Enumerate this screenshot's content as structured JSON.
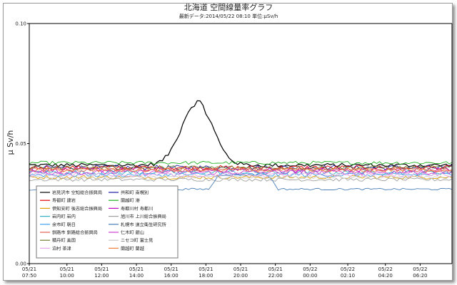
{
  "chart_data": {
    "type": "line",
    "title": "北海道 空間線量率グラフ",
    "subtitle": "最新データ:2014/05/22 08:10  単位:μSv/h",
    "ylabel": "μ Sv/h",
    "xlabel": "",
    "ylim": [
      0,
      0.1
    ],
    "yticks": [
      "0.00",
      "0.05",
      "0.10"
    ],
    "grid": false,
    "legend_position": "bottom-left",
    "x_ticks": [
      {
        "date": "05/21",
        "time": "07:50",
        "t": 0
      },
      {
        "date": "05/21",
        "time": "10:00",
        "t": 130
      },
      {
        "date": "05/21",
        "time": "12:00",
        "t": 250
      },
      {
        "date": "05/21",
        "time": "14:00",
        "t": 370
      },
      {
        "date": "05/21",
        "time": "16:00",
        "t": 490
      },
      {
        "date": "05/21",
        "time": "18:00",
        "t": 610
      },
      {
        "date": "05/21",
        "time": "20:00",
        "t": 730
      },
      {
        "date": "05/21",
        "time": "22:00",
        "t": 850
      },
      {
        "date": "05/22",
        "time": "00:00",
        "t": 970
      },
      {
        "date": "05/22",
        "time": "02:10",
        "t": 1100
      },
      {
        "date": "05/22",
        "time": "04:20",
        "t": 1230
      },
      {
        "date": "05/22",
        "time": "06:20",
        "t": 1350
      }
    ],
    "x_range": [
      0,
      1460
    ],
    "series": [
      {
        "name": "岩見沢市 空知総合振興局",
        "color": "#000000",
        "base": 0.041,
        "noise": 0.0008,
        "peak": {
          "center": 580,
          "width": 90,
          "height": 0.026
        }
      },
      {
        "name": "共和町 南幌別",
        "color": "#1a1aa0",
        "base": 0.04,
        "noise": 0.001
      },
      {
        "name": "寿都町 建岩",
        "color": "#e00000",
        "base": 0.04,
        "noise": 0.0009
      },
      {
        "name": "蘭越町 港",
        "color": "#22b022",
        "base": 0.042,
        "noise": 0.0007
      },
      {
        "name": "倶知安町 後志総合振興局",
        "color": "#e0a000",
        "base": 0.036,
        "noise": 0.0008
      },
      {
        "name": "寿都川村 寿都川",
        "color": "#c000c0",
        "base": 0.039,
        "noise": 0.0011
      },
      {
        "name": "岩内町 岩内",
        "color": "#30b0c0",
        "base": 0.038,
        "noise": 0.001
      },
      {
        "name": "旭川市 上川総合振興局",
        "color": "#a0a0a0",
        "base": 0.035,
        "noise": 0.0007
      },
      {
        "name": "余市町 朝日",
        "color": "#40a0f0",
        "base": 0.037,
        "noise": 0.0009
      },
      {
        "name": "札幌市 道立衛生研究所",
        "color": "#4a7fb8",
        "base": 0.031,
        "noise": 0.0004,
        "bump": {
          "start": 620,
          "end": 860,
          "height": 0.006
        }
      },
      {
        "name": "釧路市 釧路総合振興局",
        "color": "#e06050",
        "base": 0.039,
        "noise": 0.0008
      },
      {
        "name": "仁木町 銀山",
        "color": "#d040d0",
        "base": 0.038,
        "noise": 0.001
      },
      {
        "name": "積丹町 美国",
        "color": "#708030",
        "base": 0.04,
        "noise": 0.0008
      },
      {
        "name": "ニセコ町 富士見",
        "color": "#c8c8c8",
        "base": 0.036,
        "noise": 0.0006
      },
      {
        "name": "泊村 茶津",
        "color": "#e8a8e8",
        "base": 0.037,
        "noise": 0.0009
      },
      {
        "name": "蘭越町 蘭越",
        "color": "#f08040",
        "base": 0.039,
        "noise": 0.0009
      }
    ]
  }
}
